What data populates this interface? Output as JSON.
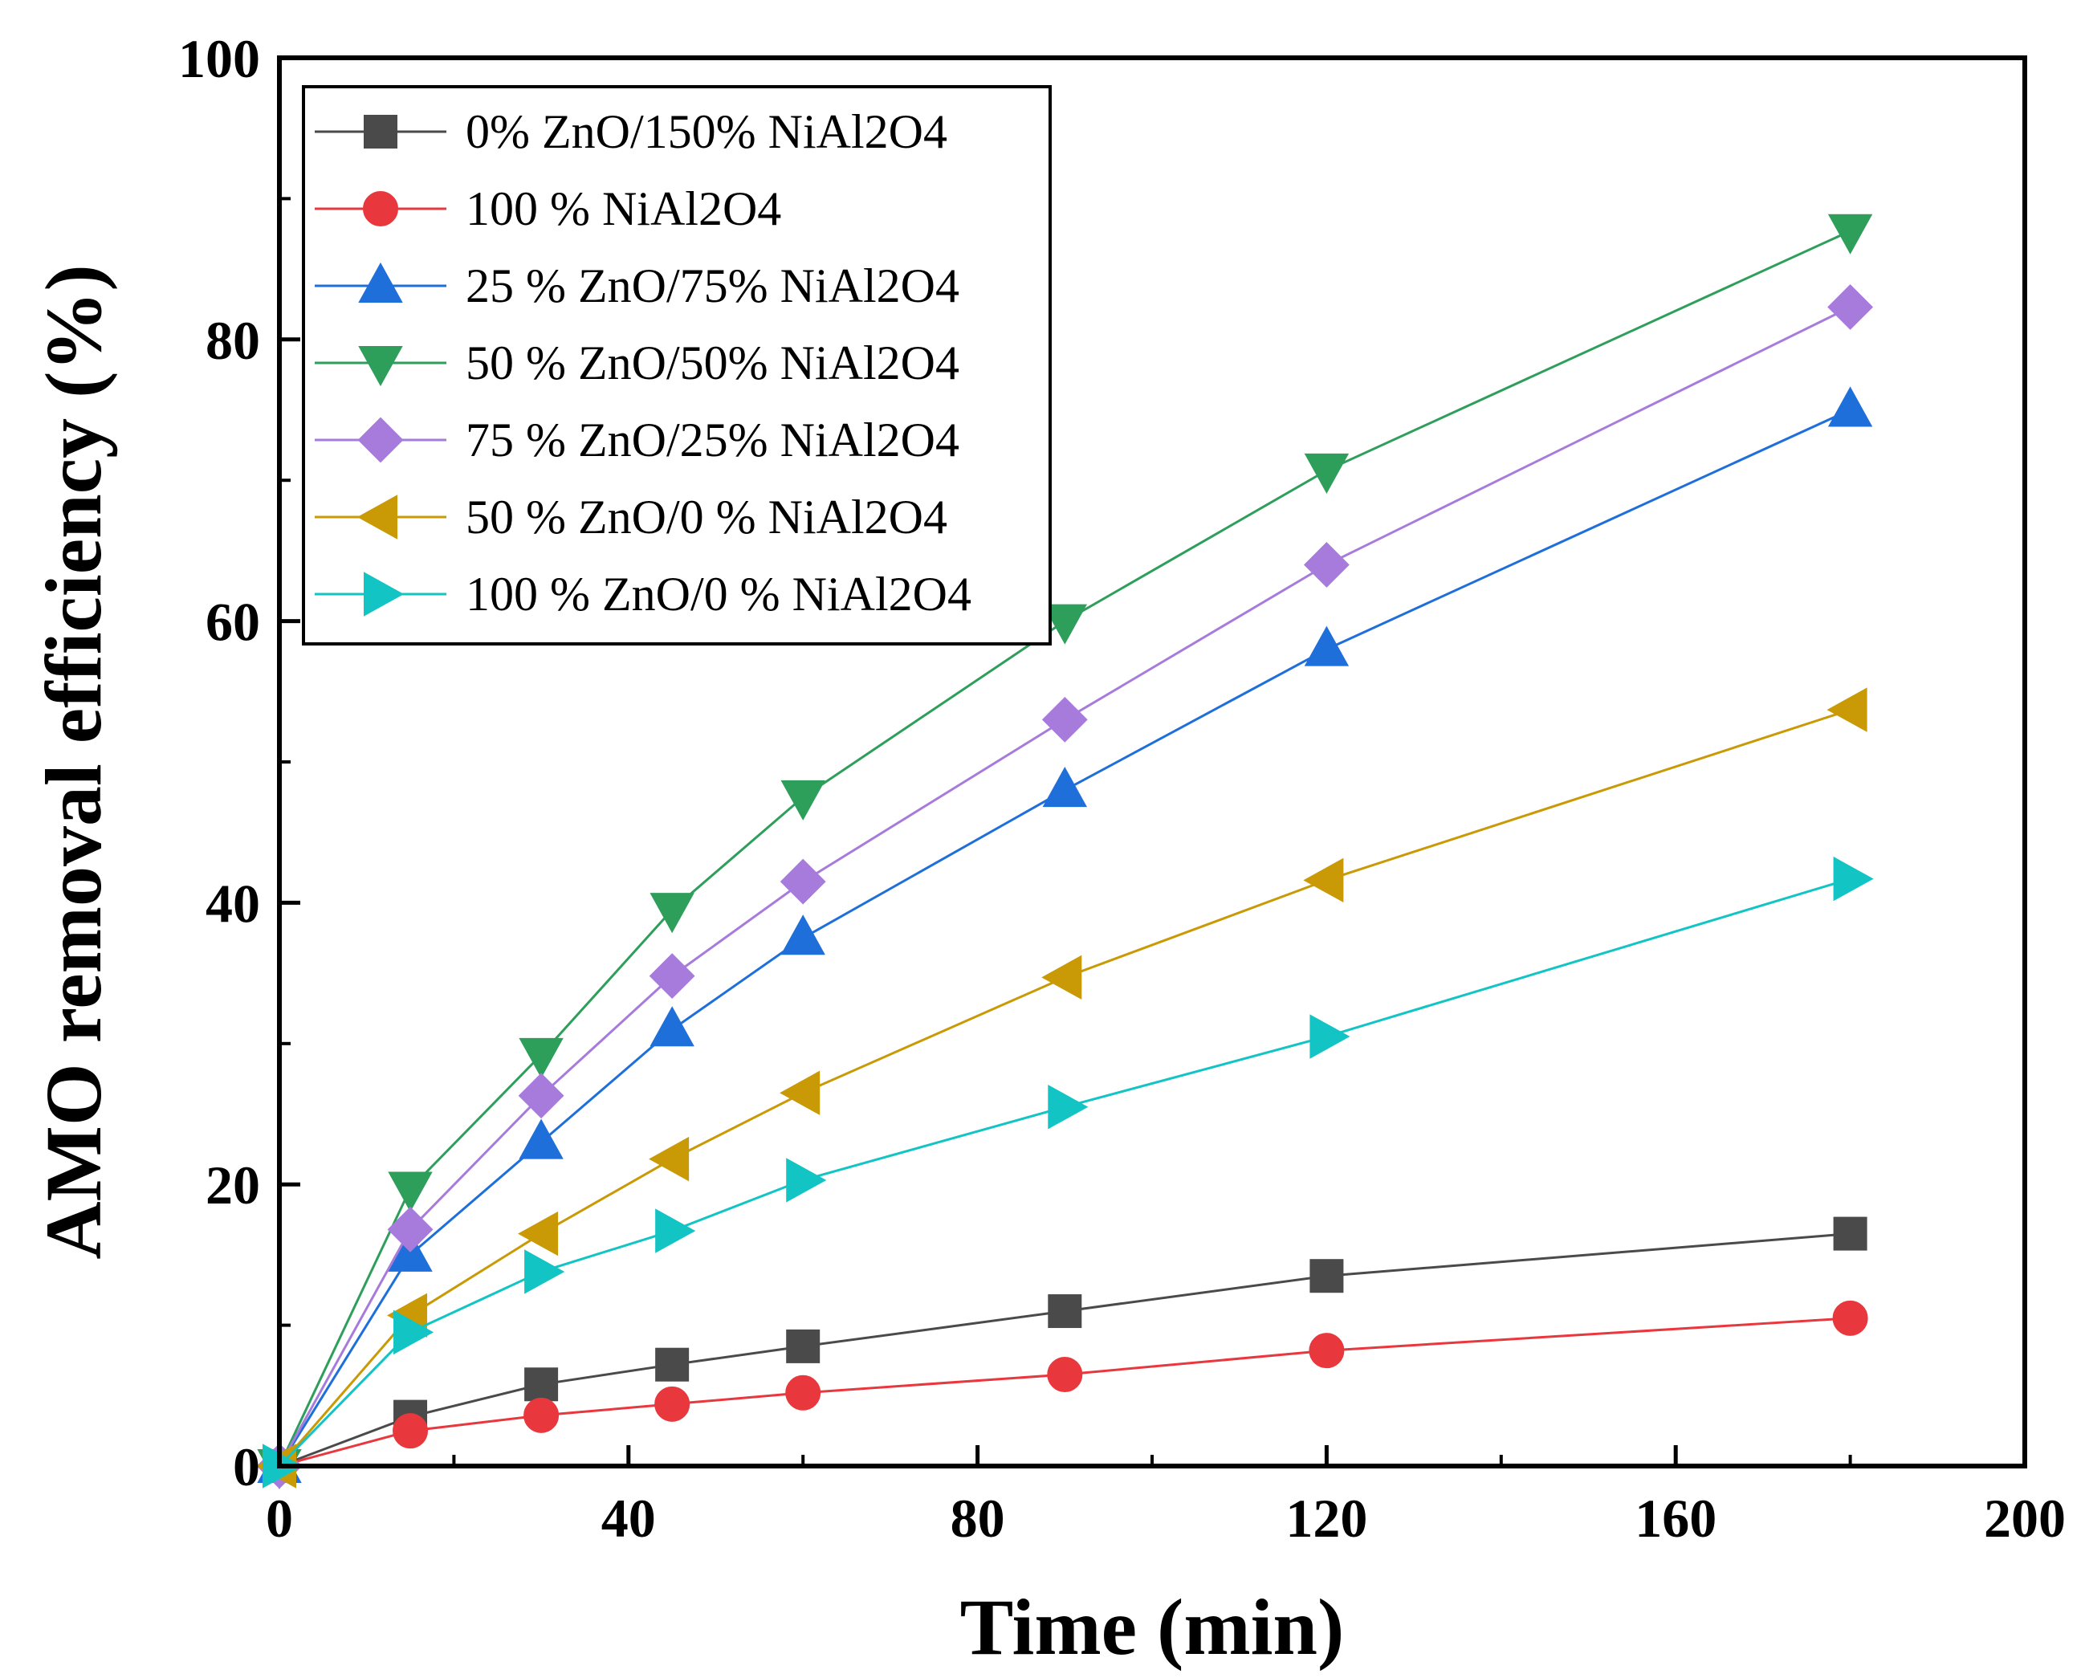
{
  "chart_data": {
    "type": "line",
    "title": "",
    "xlabel": "Time (min)",
    "ylabel": "AMO removal efficiency (%)",
    "xlim": [
      0,
      200
    ],
    "ylim": [
      0,
      100
    ],
    "xticks": [
      0,
      40,
      80,
      120,
      160,
      200
    ],
    "yticks": [
      0,
      20,
      40,
      60,
      80,
      100
    ],
    "grid": false,
    "legend_position": "top-left",
    "x": [
      0,
      15,
      30,
      45,
      60,
      90,
      120,
      180
    ],
    "series": [
      {
        "name": "0% ZnO/150% NiAl2O4",
        "color": "#4a4a4a",
        "marker": "square",
        "values": [
          0,
          3.5,
          5.8,
          7.2,
          8.5,
          11.0,
          13.5,
          16.5
        ]
      },
      {
        "name": "100 %  NiAl2O4",
        "color": "#e8383d",
        "marker": "circle",
        "values": [
          0,
          2.5,
          3.6,
          4.4,
          5.2,
          6.5,
          8.2,
          10.5
        ]
      },
      {
        "name": "25 % ZnO/75% NiAl2O4",
        "color": "#1f6fdb",
        "marker": "triangle-up",
        "values": [
          0,
          15.0,
          23.0,
          31.0,
          37.5,
          48.0,
          58.0,
          75.0
        ]
      },
      {
        "name": "50 % ZnO/50% NiAl2O4",
        "color": "#2e9e5b",
        "marker": "triangle-down",
        "values": [
          0,
          19.7,
          29.2,
          39.5,
          47.5,
          60.0,
          70.7,
          87.7
        ]
      },
      {
        "name": "75 % ZnO/25% NiAl2O4",
        "color": "#a77bdb",
        "marker": "diamond",
        "values": [
          0,
          16.8,
          26.3,
          34.8,
          41.5,
          53.0,
          64.0,
          82.3
        ]
      },
      {
        "name": "50 % ZnO/0 % NiAl2O4",
        "color": "#c99a06",
        "marker": "triangle-left",
        "values": [
          0,
          10.7,
          16.5,
          21.8,
          26.5,
          34.7,
          41.6,
          53.7
        ]
      },
      {
        "name": "100 % ZnO/0 % NiAl2O4",
        "color": "#12c4c4",
        "marker": "triangle-right",
        "values": [
          0,
          9.5,
          13.8,
          16.7,
          20.3,
          25.5,
          30.5,
          41.7
        ]
      }
    ]
  }
}
